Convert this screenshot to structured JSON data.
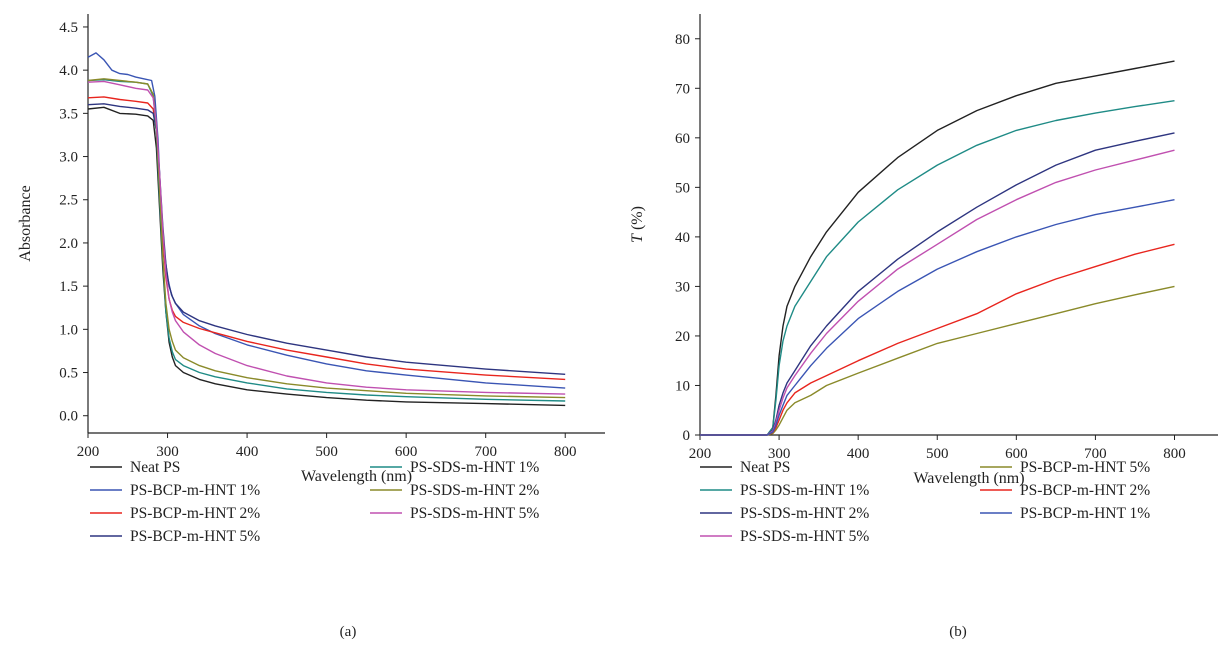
{
  "chart_data": [
    {
      "type": "line",
      "caption": "(a)",
      "xlabel": "Wavelength (nm)",
      "ylabel": "Absorbance",
      "xlim": [
        200,
        850
      ],
      "ylim": [
        -0.2,
        4.65
      ],
      "xticks": [
        200,
        300,
        400,
        500,
        600,
        700,
        800
      ],
      "yticks": [
        0.0,
        0.5,
        1.0,
        1.5,
        2.0,
        2.5,
        3.0,
        3.5,
        4.0,
        4.5
      ],
      "ytick_labels": [
        "0.0",
        "0.5",
        "1.0",
        "1.5",
        "2.0",
        "2.5",
        "3.0",
        "3.5",
        "4.0",
        "4.5"
      ],
      "legend_columns": 2,
      "legend_placement": "below",
      "series": [
        {
          "name": "Neat PS",
          "color": "#222222",
          "x": [
            200,
            220,
            240,
            260,
            275,
            282,
            286,
            290,
            294,
            298,
            302,
            306,
            310,
            320,
            340,
            360,
            400,
            450,
            500,
            550,
            600,
            700,
            800
          ],
          "y": [
            3.55,
            3.57,
            3.5,
            3.49,
            3.47,
            3.42,
            3.1,
            2.4,
            1.7,
            1.2,
            0.85,
            0.68,
            0.58,
            0.5,
            0.42,
            0.37,
            0.3,
            0.25,
            0.21,
            0.18,
            0.16,
            0.14,
            0.12
          ]
        },
        {
          "name": "PS-BCP-m-HNT 1%",
          "color": "#3a55b4",
          "x": [
            200,
            210,
            220,
            230,
            240,
            250,
            260,
            270,
            280,
            284,
            288,
            292,
            296,
            300,
            305,
            310,
            320,
            340,
            360,
            400,
            450,
            500,
            550,
            600,
            700,
            800
          ],
          "y": [
            4.15,
            4.2,
            4.12,
            4.0,
            3.96,
            3.95,
            3.92,
            3.9,
            3.88,
            3.7,
            3.2,
            2.4,
            1.9,
            1.6,
            1.4,
            1.3,
            1.17,
            1.04,
            0.95,
            0.82,
            0.7,
            0.6,
            0.52,
            0.47,
            0.38,
            0.32
          ]
        },
        {
          "name": "PS-BCP-m-HNT 2%",
          "color": "#e8251e",
          "x": [
            200,
            220,
            240,
            260,
            275,
            282,
            286,
            290,
            294,
            298,
            302,
            306,
            310,
            320,
            340,
            360,
            400,
            450,
            500,
            550,
            600,
            700,
            800
          ],
          "y": [
            3.68,
            3.69,
            3.66,
            3.64,
            3.62,
            3.55,
            3.3,
            2.7,
            2.05,
            1.6,
            1.35,
            1.22,
            1.15,
            1.08,
            1.01,
            0.96,
            0.86,
            0.76,
            0.68,
            0.6,
            0.54,
            0.47,
            0.42
          ]
        },
        {
          "name": "PS-BCP-m-HNT 5%",
          "color": "#2e3580",
          "x": [
            200,
            220,
            240,
            260,
            275,
            282,
            286,
            290,
            294,
            298,
            302,
            306,
            310,
            320,
            340,
            360,
            400,
            450,
            500,
            550,
            600,
            700,
            800
          ],
          "y": [
            3.6,
            3.61,
            3.58,
            3.56,
            3.54,
            3.5,
            3.3,
            2.8,
            2.2,
            1.75,
            1.5,
            1.38,
            1.3,
            1.2,
            1.1,
            1.04,
            0.94,
            0.84,
            0.76,
            0.68,
            0.62,
            0.54,
            0.48
          ]
        },
        {
          "name": "PS-SDS-m-HNT 1%",
          "color": "#1f8b86",
          "x": [
            200,
            220,
            240,
            260,
            275,
            282,
            286,
            290,
            294,
            298,
            302,
            306,
            310,
            320,
            340,
            360,
            400,
            450,
            500,
            550,
            600,
            700,
            800
          ],
          "y": [
            3.88,
            3.89,
            3.87,
            3.86,
            3.84,
            3.7,
            3.3,
            2.5,
            1.8,
            1.2,
            0.9,
            0.74,
            0.65,
            0.58,
            0.5,
            0.45,
            0.38,
            0.31,
            0.27,
            0.24,
            0.22,
            0.19,
            0.17
          ]
        },
        {
          "name": "PS-SDS-m-HNT 2%",
          "color": "#8a8a2a",
          "x": [
            200,
            220,
            240,
            260,
            275,
            282,
            286,
            290,
            294,
            298,
            302,
            306,
            310,
            320,
            340,
            360,
            400,
            450,
            500,
            550,
            600,
            700,
            800
          ],
          "y": [
            3.88,
            3.9,
            3.88,
            3.86,
            3.84,
            3.72,
            3.35,
            2.6,
            1.85,
            1.3,
            1.0,
            0.86,
            0.76,
            0.67,
            0.58,
            0.52,
            0.44,
            0.37,
            0.32,
            0.29,
            0.26,
            0.23,
            0.21
          ]
        },
        {
          "name": "PS-SDS-m-HNT 5%",
          "color": "#c050b0",
          "x": [
            200,
            220,
            240,
            260,
            275,
            282,
            286,
            290,
            294,
            298,
            302,
            306,
            310,
            320,
            340,
            360,
            400,
            450,
            500,
            550,
            600,
            700,
            800
          ],
          "y": [
            3.86,
            3.87,
            3.83,
            3.79,
            3.77,
            3.68,
            3.38,
            2.8,
            2.15,
            1.65,
            1.35,
            1.2,
            1.1,
            0.97,
            0.82,
            0.72,
            0.58,
            0.46,
            0.38,
            0.33,
            0.3,
            0.27,
            0.25
          ]
        }
      ]
    },
    {
      "type": "line",
      "caption": "(b)",
      "xlabel": "Wavelength (nm)",
      "ylabel_italic": "T",
      "ylabel_rest": " (%)",
      "xlim": [
        200,
        855
      ],
      "ylim": [
        0,
        85
      ],
      "xticks": [
        200,
        300,
        400,
        500,
        600,
        700,
        800
      ],
      "yticks": [
        0,
        10,
        20,
        30,
        40,
        50,
        60,
        70,
        80
      ],
      "legend_columns": 2,
      "legend_placement": "below",
      "series": [
        {
          "name": "Neat PS",
          "color": "#222222",
          "x": [
            200,
            285,
            292,
            296,
            300,
            305,
            310,
            320,
            340,
            360,
            400,
            450,
            500,
            550,
            600,
            650,
            700,
            750,
            800
          ],
          "y": [
            0,
            0,
            1.5,
            8,
            16,
            22,
            26,
            30,
            36,
            41,
            49,
            56,
            61.5,
            65.5,
            68.5,
            71,
            72.5,
            74,
            75.5
          ]
        },
        {
          "name": "PS-SDS-m-HNT 1%",
          "color": "#1f8b86",
          "x": [
            200,
            285,
            292,
            296,
            300,
            305,
            310,
            320,
            340,
            360,
            400,
            450,
            500,
            550,
            600,
            650,
            700,
            750,
            800
          ],
          "y": [
            0,
            0,
            1.5,
            7,
            14,
            19,
            22,
            26,
            31,
            36,
            43,
            49.5,
            54.5,
            58.5,
            61.5,
            63.5,
            65,
            66.3,
            67.5
          ]
        },
        {
          "name": "PS-SDS-m-HNT 2%",
          "color": "#2e3580",
          "x": [
            200,
            285,
            292,
            296,
            300,
            305,
            310,
            320,
            340,
            360,
            400,
            450,
            500,
            550,
            600,
            650,
            700,
            750,
            800
          ],
          "y": [
            0,
            0,
            1,
            3,
            6,
            8.5,
            10.5,
            13,
            18,
            22,
            29,
            35.5,
            41,
            46,
            50.5,
            54.5,
            57.5,
            59.3,
            61
          ]
        },
        {
          "name": "PS-SDS-m-HNT 5%",
          "color": "#c050b0",
          "x": [
            200,
            285,
            292,
            296,
            300,
            305,
            310,
            320,
            340,
            360,
            400,
            450,
            500,
            550,
            600,
            650,
            700,
            750,
            800
          ],
          "y": [
            0,
            0,
            0.8,
            2.5,
            5,
            7.5,
            9.5,
            12,
            16.5,
            20.5,
            27,
            33.5,
            38.5,
            43.5,
            47.5,
            51,
            53.5,
            55.5,
            57.5
          ]
        },
        {
          "name": "PS-BCP-m-HNT 5%",
          "color": "#8a8a2a",
          "x": [
            200,
            285,
            292,
            296,
            300,
            305,
            310,
            320,
            340,
            360,
            400,
            450,
            500,
            550,
            600,
            650,
            700,
            750,
            800
          ],
          "y": [
            0,
            0,
            0.3,
            1,
            2,
            3.5,
            5,
            6.5,
            8,
            10,
            12.5,
            15.5,
            18.5,
            20.5,
            22.5,
            24.5,
            26.5,
            28.3,
            30
          ]
        },
        {
          "name": "PS-BCP-m-HNT 2%",
          "color": "#e8251e",
          "x": [
            200,
            285,
            292,
            296,
            300,
            305,
            310,
            320,
            340,
            360,
            400,
            450,
            500,
            550,
            600,
            650,
            700,
            750,
            800
          ],
          "y": [
            0,
            0,
            0.5,
            1.5,
            3,
            5,
            6.5,
            8.5,
            10.5,
            12,
            15,
            18.5,
            21.5,
            24.5,
            28.5,
            31.5,
            34,
            36.5,
            38.5
          ]
        },
        {
          "name": "PS-BCP-m-HNT 1%",
          "color": "#3a55b4",
          "x": [
            200,
            285,
            292,
            296,
            300,
            305,
            310,
            320,
            340,
            360,
            400,
            450,
            500,
            550,
            600,
            650,
            700,
            750,
            800
          ],
          "y": [
            0,
            0,
            0.6,
            2,
            4,
            6,
            8,
            10,
            14,
            17.5,
            23.5,
            29,
            33.5,
            37,
            40,
            42.5,
            44.5,
            46,
            47.5
          ]
        }
      ]
    }
  ]
}
